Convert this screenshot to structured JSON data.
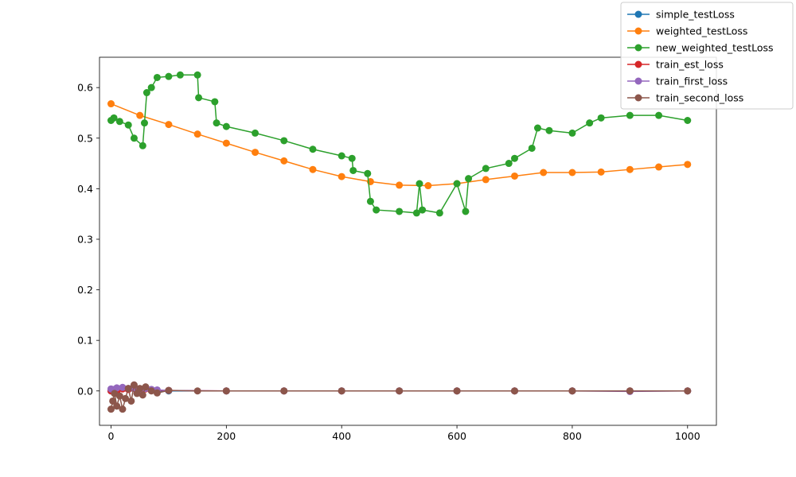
{
  "chart_data": {
    "type": "line",
    "title": "",
    "xlabel": "",
    "ylabel": "",
    "xlim": [
      -20,
      1050
    ],
    "ylim": [
      -0.068,
      0.66
    ],
    "xticks": [
      0,
      200,
      400,
      600,
      800,
      1000
    ],
    "yticks": [
      0.0,
      0.1,
      0.2,
      0.3,
      0.4,
      0.5,
      0.6
    ],
    "xtick_labels": [
      "0",
      "200",
      "400",
      "600",
      "800",
      "1000"
    ],
    "ytick_labels": [
      "0.0",
      "0.1",
      "0.2",
      "0.3",
      "0.4",
      "0.5",
      "0.6"
    ],
    "grid": false,
    "legend_position": "top-right",
    "marker": "circle",
    "series": [
      {
        "name": "simple_testLoss",
        "color": "#1f77b4",
        "x": [
          0,
          100,
          200,
          300,
          400,
          500,
          600,
          700,
          800,
          900,
          1000
        ],
        "y": [
          0.0,
          0.0,
          0.0,
          0.0,
          0.0,
          0.0,
          0.0,
          0.0,
          0.0,
          0.0,
          0.0
        ]
      },
      {
        "name": "weighted_testLoss",
        "color": "#ff7f0e",
        "x": [
          0,
          50,
          100,
          150,
          200,
          250,
          300,
          350,
          400,
          450,
          500,
          550,
          600,
          650,
          700,
          750,
          800,
          850,
          900,
          950,
          1000
        ],
        "y": [
          0.568,
          0.545,
          0.527,
          0.508,
          0.49,
          0.472,
          0.455,
          0.438,
          0.424,
          0.414,
          0.407,
          0.406,
          0.41,
          0.418,
          0.425,
          0.432,
          0.432,
          0.433,
          0.438,
          0.443,
          0.448
        ]
      },
      {
        "name": "new_weighted_testLoss",
        "color": "#2ca02c",
        "x": [
          0,
          5,
          15,
          30,
          40,
          55,
          58,
          62,
          70,
          80,
          100,
          120,
          150,
          152,
          180,
          183,
          200,
          250,
          300,
          350,
          400,
          418,
          420,
          445,
          450,
          460,
          500,
          530,
          535,
          540,
          570,
          600,
          615,
          620,
          650,
          690,
          700,
          730,
          740,
          760,
          800,
          830,
          850,
          900,
          950,
          1000
        ],
        "y": [
          0.535,
          0.54,
          0.533,
          0.526,
          0.5,
          0.485,
          0.53,
          0.59,
          0.6,
          0.62,
          0.622,
          0.625,
          0.625,
          0.58,
          0.572,
          0.53,
          0.523,
          0.51,
          0.495,
          0.478,
          0.465,
          0.46,
          0.436,
          0.43,
          0.375,
          0.358,
          0.355,
          0.352,
          0.41,
          0.358,
          0.352,
          0.41,
          0.355,
          0.42,
          0.44,
          0.45,
          0.46,
          0.48,
          0.52,
          0.515,
          0.51,
          0.53,
          0.54,
          0.545,
          0.545,
          0.535
        ]
      },
      {
        "name": "train_est_loss",
        "color": "#d62728",
        "x": [
          0,
          5,
          10,
          20,
          30,
          40,
          50,
          60,
          70,
          80,
          100,
          200,
          300,
          400,
          500,
          600,
          700,
          800,
          900,
          1000
        ],
        "y": [
          0.0,
          0.002,
          -0.003,
          0.004,
          0.003,
          0.005,
          0.002,
          0.004,
          0.002,
          0.001,
          0.001,
          0.0,
          0.0,
          0.0,
          0.0,
          0.0,
          0.0,
          0.0,
          0.0,
          0.0
        ]
      },
      {
        "name": "train_first_loss",
        "color": "#9467bd",
        "x": [
          0,
          5,
          10,
          20,
          30,
          40,
          50,
          60,
          70,
          80,
          100,
          200,
          300,
          400,
          500,
          600,
          700,
          800,
          900,
          1000
        ],
        "y": [
          0.004,
          0.003,
          0.006,
          0.007,
          0.005,
          0.006,
          0.004,
          0.005,
          0.003,
          0.002,
          0.001,
          0.0,
          0.0,
          0.0,
          0.0,
          0.0,
          0.0,
          0.0,
          -0.001,
          0.0
        ]
      },
      {
        "name": "train_second_loss",
        "color": "#8c564b",
        "x": [
          0,
          3,
          6,
          10,
          15,
          20,
          25,
          30,
          35,
          40,
          45,
          50,
          55,
          60,
          70,
          80,
          100,
          150,
          200,
          300,
          400,
          500,
          600,
          700,
          800,
          900,
          1000
        ],
        "y": [
          -0.036,
          -0.02,
          -0.005,
          -0.03,
          -0.01,
          -0.036,
          -0.015,
          0.005,
          -0.02,
          0.012,
          -0.005,
          0.005,
          -0.008,
          0.008,
          0.0,
          -0.004,
          0.001,
          0.0,
          0.0,
          0.0,
          0.0,
          0.0,
          0.0,
          0.0,
          0.0,
          0.0,
          0.0
        ]
      }
    ]
  }
}
